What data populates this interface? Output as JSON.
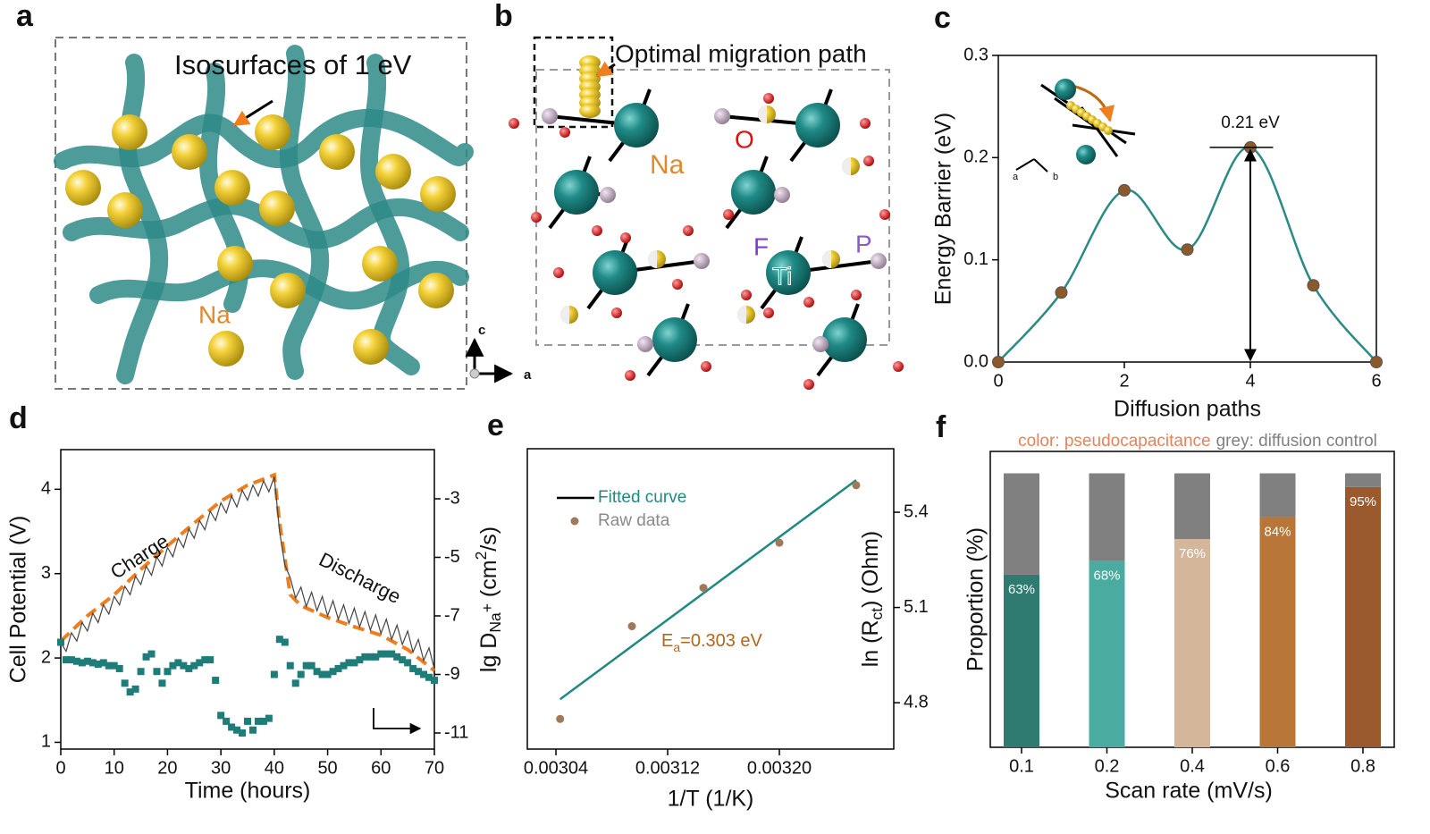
{
  "figure": {
    "panel_labels": [
      "a",
      "b",
      "c",
      "d",
      "e",
      "f"
    ],
    "panel_a": {
      "annotation": "Isosurfaces of 1 eV",
      "atom_label": "Na",
      "axis_labels": [
        "c",
        "a"
      ]
    },
    "panel_b": {
      "annotation": "Optimal migration path",
      "atom_labels": [
        "Na",
        "O",
        "F",
        "Ti",
        "P"
      ]
    }
  },
  "chart_data": [
    {
      "type": "line",
      "xlabel": "Diffusion paths",
      "ylabel": "Energy Barrier (eV)",
      "x": [
        0,
        1,
        2,
        3,
        4,
        5,
        6
      ],
      "values": [
        0,
        0.068,
        0.168,
        0.11,
        0.21,
        0.075,
        0
      ],
      "line_color": "#2a8a84",
      "marker_color": "#8b5a2b",
      "smooth": true,
      "xlim": [
        0,
        6
      ],
      "xticks": [
        0,
        2,
        4,
        6
      ],
      "ylim": [
        0,
        0.3
      ],
      "yticks": [
        {
          "value": 0,
          "label": "0.0"
        },
        0.1,
        0.2,
        0.3
      ],
      "annotation": "0.21 eV",
      "inset_axis_labels": [
        "a",
        "b"
      ]
    },
    {
      "type": "line",
      "xlabel": "Time (hours)",
      "ylabel": "Cell Potential (V)",
      "y2label": [
        {
          "text": "lg D"
        },
        {
          "text": "Na",
          "pos": "sub"
        },
        {
          "text": "+",
          "pos": "subsup"
        },
        {
          "text": " (cm"
        },
        {
          "text": "2",
          "pos": "sup"
        },
        {
          "text": "/s)"
        }
      ],
      "annotations": [
        "Charge",
        "Discharge"
      ],
      "xlim": [
        0,
        70
      ],
      "xticks": [
        0,
        10,
        20,
        30,
        40,
        50,
        60,
        70
      ],
      "ylim": [
        0.92,
        4.47
      ],
      "yticks": [
        1,
        2,
        3,
        4
      ],
      "y2lim": [
        -11.55,
        -1.32
      ],
      "y2ticks": [
        -11,
        -9,
        -7,
        -5,
        -3
      ],
      "series": [
        {
          "color": "#f07d1e",
          "style": "dashed",
          "x": [
            0,
            5,
            10,
            15,
            20,
            25,
            30,
            35,
            38,
            40,
            41,
            43,
            45,
            50,
            55,
            60,
            65,
            70
          ],
          "values": [
            2.2,
            2.5,
            2.75,
            3.05,
            3.33,
            3.6,
            3.86,
            4.05,
            4.12,
            4.17,
            3.6,
            2.75,
            2.62,
            2.48,
            2.37,
            2.27,
            2.1,
            1.85
          ]
        },
        {
          "color": "#444444",
          "style": "line",
          "x": [
            0,
            1,
            2,
            3,
            4,
            5,
            6,
            7,
            8,
            9,
            10,
            11,
            12,
            13,
            14,
            15,
            16,
            17,
            18,
            19,
            20,
            21,
            22,
            23,
            24,
            25,
            26,
            27,
            28,
            29,
            30,
            31,
            32,
            33,
            34,
            35,
            36,
            37,
            38,
            39,
            40,
            41,
            42,
            43,
            44,
            45,
            46,
            47,
            48,
            49,
            50,
            51,
            52,
            53,
            54,
            55,
            56,
            57,
            58,
            59,
            60,
            61,
            62,
            63,
            64,
            65,
            66,
            67,
            68,
            69,
            70
          ],
          "values": [
            2.18,
            2.08,
            2.3,
            2.2,
            2.42,
            2.32,
            2.53,
            2.42,
            2.63,
            2.52,
            2.73,
            2.63,
            2.85,
            2.75,
            2.97,
            2.87,
            3.09,
            2.98,
            3.2,
            3.09,
            3.31,
            3.2,
            3.42,
            3.31,
            3.53,
            3.42,
            3.63,
            3.52,
            3.74,
            3.63,
            3.84,
            3.72,
            3.92,
            3.79,
            3.99,
            3.87,
            4.05,
            3.92,
            4.1,
            3.97,
            4.15,
            3.5,
            3.1,
            2.95,
            2.71,
            2.84,
            2.61,
            2.78,
            2.56,
            2.73,
            2.5,
            2.68,
            2.46,
            2.63,
            2.41,
            2.59,
            2.37,
            2.55,
            2.33,
            2.51,
            2.29,
            2.46,
            2.22,
            2.39,
            2.16,
            2.32,
            2.07,
            2.22,
            1.97,
            2.12,
            1.87
          ]
        },
        {
          "color": "#1e7d78",
          "style": "marker",
          "axis": "y2",
          "x": [
            0,
            1,
            2,
            3,
            4,
            5,
            6,
            7,
            8,
            9,
            10,
            11,
            12,
            13,
            14,
            15,
            16,
            17,
            18,
            19,
            20,
            21,
            22,
            23,
            24,
            25,
            26,
            27,
            28,
            29,
            30,
            31,
            32,
            33,
            34,
            35,
            36,
            37,
            38,
            39,
            40,
            41,
            42,
            43,
            44,
            45,
            46,
            47,
            48,
            49,
            50,
            51,
            52,
            53,
            54,
            55,
            56,
            57,
            58,
            59,
            60,
            61,
            62,
            63,
            64,
            65,
            66,
            67,
            68,
            69,
            70
          ],
          "values": [
            -7.9,
            -8.5,
            -8.5,
            -8.55,
            -8.6,
            -8.55,
            -8.6,
            -8.65,
            -8.6,
            -8.7,
            -8.7,
            -8.8,
            -9.3,
            -9.6,
            -9.5,
            -8.9,
            -8.4,
            -8.3,
            -8.9,
            -9.3,
            -8.9,
            -8.7,
            -8.6,
            -8.7,
            -8.8,
            -8.7,
            -8.6,
            -8.5,
            -8.5,
            -9.2,
            -10.4,
            -10.6,
            -10.8,
            -10.9,
            -11.0,
            -10.6,
            -10.9,
            -10.6,
            -10.6,
            -10.5,
            -9.0,
            -7.8,
            -7.9,
            -8.7,
            -9.3,
            -9.0,
            -8.7,
            -8.7,
            -8.9,
            -9.0,
            -9.0,
            -8.9,
            -8.8,
            -8.7,
            -8.6,
            -8.6,
            -8.5,
            -8.4,
            -8.4,
            -8.4,
            -8.3,
            -8.3,
            -8.3,
            -8.4,
            -8.5,
            -8.6,
            -8.8,
            -8.9,
            -9.0,
            -9.1,
            -9.2
          ]
        }
      ]
    },
    {
      "type": "scatter",
      "xlabel": "1/T (1/K)",
      "ylabel": [
        {
          "text": "ln (R"
        },
        {
          "text": "ct",
          "pos": "sub"
        },
        {
          "text": ") (Ohm)"
        }
      ],
      "y_axis_side": "right",
      "annotation": [
        {
          "text": "E"
        },
        {
          "text": "a",
          "pos": "sub"
        },
        {
          "text": "=0.303 eV"
        }
      ],
      "xlim": [
        0.0030195,
        0.0032819
      ],
      "xticks": [
        0.00304,
        0.00312,
        {
          "value": 0.0032,
          "label": "0.00320"
        }
      ],
      "ylim": [
        4.654,
        5.6
      ],
      "yticks": [
        4.8,
        5.1,
        5.4
      ],
      "series": [
        {
          "name": "Fitted curve",
          "color": "#1e8a80",
          "style": "line",
          "x": [
            0.003043,
            0.003255
          ],
          "values": [
            4.811,
            5.501
          ]
        },
        {
          "name": "Raw data",
          "color": "#a0785a",
          "legend_text_color": "#8a8a8a",
          "style": "marker",
          "x": [
            0.003043,
            0.0030944,
            0.0031456,
            0.0032,
            0.003255
          ],
          "values": [
            4.749,
            5.041,
            5.162,
            5.304,
            5.485
          ]
        }
      ]
    },
    {
      "type": "bar",
      "stacked": true,
      "xlabel": "Scan rate (mV/s)",
      "ylabel": "Proportion (%)",
      "categories": [
        "0.1",
        "0.2",
        "0.4",
        "0.6",
        "0.8"
      ],
      "ylim": [
        0,
        108
      ],
      "series": [
        {
          "name": "color: pseudocapacitance",
          "legend_color": "#e8825a",
          "colors": [
            "#2f7b72",
            "#4aaba0",
            "#d4b79a",
            "#b87638",
            "#9b5a2e"
          ],
          "values": [
            63,
            68,
            76,
            84,
            95
          ],
          "value_labels": [
            "63%",
            "68%",
            "76%",
            "84%",
            "95%"
          ]
        },
        {
          "name": "grey: diffusion control",
          "color": "#808080",
          "values": [
            37,
            32,
            24,
            16,
            5
          ]
        }
      ]
    }
  ]
}
